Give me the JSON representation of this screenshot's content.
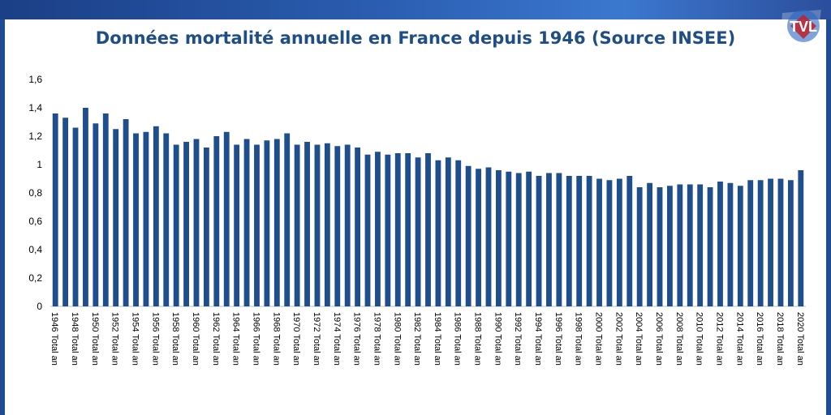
{
  "title": "Données mortalité annuelle en France depuis 1946 (Source INSEE)",
  "logo": {
    "text": "TVL",
    "icon": "tvl-logo-icon"
  },
  "colors": {
    "bar": "#1f4e8c",
    "title": "#1f4e86",
    "axis_text": "#000000",
    "frame": "#ffffff",
    "background": "#1f4c92"
  },
  "chart_data": {
    "type": "bar",
    "title": "Données mortalité annuelle en France depuis 1946 (Source INSEE)",
    "xlabel": "",
    "ylabel": "",
    "ylim": [
      0,
      1.6
    ],
    "yticks": [
      "0",
      "0,2",
      "0,4",
      "0,6",
      "0,8",
      "1",
      "1,2",
      "1,4",
      "1,6"
    ],
    "grid": false,
    "legend": "none",
    "categories": [
      "1946 Total an",
      "1947 Total an",
      "1948 Total an",
      "1949 Total an",
      "1950 Total an",
      "1951 Total an",
      "1952 Total an",
      "1953 Total an",
      "1954 Total an",
      "1955 Total an",
      "1956 Total an",
      "1957 Total an",
      "1958 Total an",
      "1959 Total an",
      "1960 Total an",
      "1961 Total an",
      "1962 Total an",
      "1963 Total an",
      "1964 Total an",
      "1965 Total an",
      "1966 Total an",
      "1967 Total an",
      "1968 Total an",
      "1969 Total an",
      "1970 Total an",
      "1971 Total an",
      "1972 Total an",
      "1973 Total an",
      "1974 Total an",
      "1975 Total an",
      "1976 Total an",
      "1977 Total an",
      "1978 Total an",
      "1979 Total an",
      "1980 Total an",
      "1981 Total an",
      "1982 Total an",
      "1983 Total an",
      "1984 Total an",
      "1985 Total an",
      "1986 Total an",
      "1987 Total an",
      "1988 Total an",
      "1989 Total an",
      "1990 Total an",
      "1991 Total an",
      "1992 Total an",
      "1993 Total an",
      "1994 Total an",
      "1995 Total an",
      "1996 Total an",
      "1997 Total an",
      "1998 Total an",
      "1999 Total an",
      "2000 Total an",
      "2001 Total an",
      "2002 Total an",
      "2003 Total an",
      "2004 Total an",
      "2005 Total an",
      "2006 Total an",
      "2007 Total an",
      "2008 Total an",
      "2009 Total an",
      "2010 Total an",
      "2011 Total an",
      "2012 Total an",
      "2013 Total an",
      "2014 Total an",
      "2015 Total an",
      "2016 Total an",
      "2017 Total an",
      "2018 Total an",
      "2019 Total an",
      "2020 Total an"
    ],
    "shown_categories": [
      "1946 Total an",
      "1948 Total an",
      "1950 Total an",
      "1952 Total an",
      "1954 Total an",
      "1956 Total an",
      "1958 Total an",
      "1960 Total an",
      "1962 Total an",
      "1964 Total an",
      "1966 Total an",
      "1968 Total an",
      "1970 Total an",
      "1972 Total an",
      "1974 Total an",
      "1976 Total an",
      "1978 Total an",
      "1980 Total an",
      "1982 Total an",
      "1984 Total an",
      "1986 Total an",
      "1988 Total an",
      "1990 Total an",
      "1992 Total an",
      "1994 Total an",
      "1996 Total an",
      "1998 Total an",
      "2000 Total an",
      "2002 Total an",
      "2004 Total an",
      "2006 Total an",
      "2008 Total an",
      "2010 Total an",
      "2012 Total an",
      "2014 Total an",
      "2016 Total an",
      "2018 Total an",
      "2020 Total an"
    ],
    "values": [
      1.36,
      1.33,
      1.26,
      1.4,
      1.29,
      1.36,
      1.25,
      1.32,
      1.22,
      1.23,
      1.27,
      1.22,
      1.14,
      1.16,
      1.18,
      1.12,
      1.2,
      1.23,
      1.14,
      1.18,
      1.14,
      1.17,
      1.18,
      1.22,
      1.14,
      1.16,
      1.14,
      1.15,
      1.13,
      1.14,
      1.12,
      1.07,
      1.09,
      1.07,
      1.08,
      1.08,
      1.05,
      1.08,
      1.03,
      1.05,
      1.03,
      0.99,
      0.97,
      0.98,
      0.96,
      0.95,
      0.94,
      0.95,
      0.92,
      0.94,
      0.94,
      0.92,
      0.92,
      0.92,
      0.9,
      0.89,
      0.9,
      0.92,
      0.84,
      0.87,
      0.84,
      0.85,
      0.86,
      0.86,
      0.86,
      0.84,
      0.88,
      0.87,
      0.85,
      0.89,
      0.89,
      0.9,
      0.9,
      0.89,
      0.96
    ]
  }
}
